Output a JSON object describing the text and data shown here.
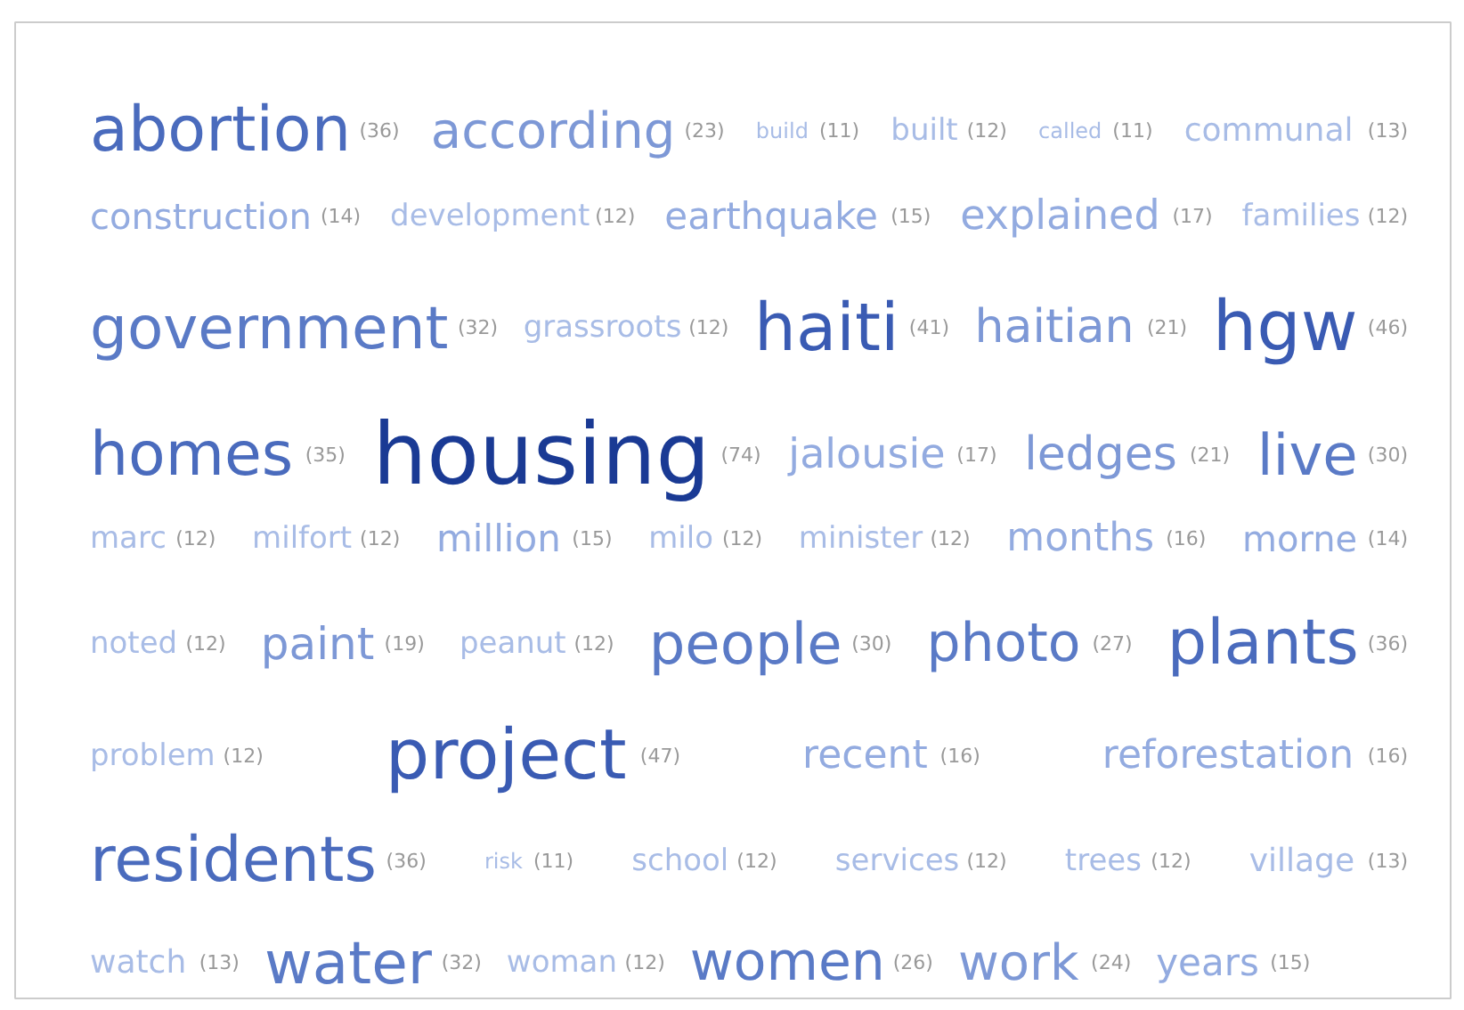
{
  "chart_data": {
    "type": "other",
    "categories": [
      "abortion",
      "according",
      "build",
      "built",
      "called",
      "communal",
      "construction",
      "development",
      "earthquake",
      "explained",
      "families",
      "government",
      "grassroots",
      "haiti",
      "haitian",
      "hgw",
      "homes",
      "housing",
      "jalousie",
      "ledges",
      "live",
      "marc",
      "milfort",
      "million",
      "milo",
      "minister",
      "months",
      "morne",
      "noted",
      "paint",
      "peanut",
      "people",
      "photo",
      "plants",
      "problem",
      "project",
      "recent",
      "reforestation",
      "residents",
      "risk",
      "school",
      "services",
      "trees",
      "village",
      "watch",
      "water",
      "woman",
      "women",
      "work",
      "years"
    ],
    "value_labels": [
      "(36)",
      "(23)",
      "(11)",
      "(12)",
      "(11)",
      "(13)",
      "(14)",
      "(12)",
      "(15)",
      "(17)",
      "(12)",
      "(32)",
      "(12)",
      "(41)",
      "(21)",
      "(46)",
      "(35)",
      "(74)",
      "(17)",
      "(21)",
      "(30)",
      "(12)",
      "(12)",
      "(15)",
      "(12)",
      "(12)",
      "(16)",
      "(14)",
      "(12)",
      "(19)",
      "(12)",
      "(30)",
      "(27)",
      "(36)",
      "(12)",
      "(47)",
      "(16)",
      "(16)",
      "(36)",
      "(11)",
      "(12)",
      "(12)",
      "(12)",
      "(13)",
      "(13)",
      "(32)",
      "(12)",
      "(26)",
      "(24)",
      "(15)"
    ],
    "values": [
      36,
      23,
      11,
      12,
      11,
      13,
      14,
      12,
      15,
      17,
      12,
      32,
      12,
      41,
      21,
      46,
      35,
      74,
      17,
      21,
      30,
      12,
      12,
      15,
      12,
      12,
      16,
      14,
      12,
      19,
      12,
      30,
      27,
      36,
      12,
      47,
      16,
      16,
      36,
      11,
      12,
      12,
      12,
      13,
      13,
      32,
      12,
      26,
      24,
      15
    ],
    "colors": [
      "#4a6bbd",
      "#7d98d6",
      "#a8bce6",
      "#a8bce6",
      "#a8bce6",
      "#a8bce6",
      "#93abe0",
      "#a8bce6",
      "#93abe0",
      "#93abe0",
      "#a8bce6",
      "#5a7ac6",
      "#a8bce6",
      "#3a5bb3",
      "#7d98d6",
      "#3a5bb3",
      "#4a6bbd",
      "#1a3a94",
      "#93abe0",
      "#7d98d6",
      "#5a7ac6",
      "#a8bce6",
      "#a8bce6",
      "#93abe0",
      "#a8bce6",
      "#a8bce6",
      "#93abe0",
      "#93abe0",
      "#a8bce6",
      "#7d98d6",
      "#a8bce6",
      "#5a7ac6",
      "#5a7ac6",
      "#4a6bbd",
      "#a8bce6",
      "#3a5bb3",
      "#93abe0",
      "#93abe0",
      "#4a6bbd",
      "#a8bce6",
      "#a8bce6",
      "#a8bce6",
      "#a8bce6",
      "#a8bce6",
      "#a8bce6",
      "#5a7ac6",
      "#a8bce6",
      "#5a7ac6",
      "#7d98d6",
      "#93abe0"
    ]
  }
}
